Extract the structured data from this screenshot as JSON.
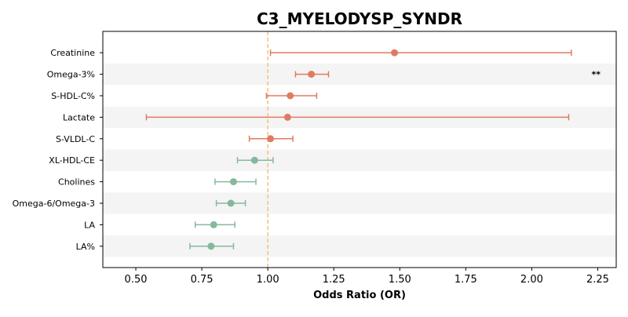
{
  "chart_data": {
    "type": "forest",
    "title": "C3_MYELODYSP_SYNDR",
    "xlabel": "Odds Ratio (OR)",
    "ylabel": "",
    "xlim": [
      0.375,
      2.32
    ],
    "xticks": [
      0.5,
      0.75,
      1.0,
      1.25,
      1.5,
      1.75,
      2.0,
      2.25
    ],
    "xtick_labels": [
      "0.50",
      "0.75",
      "1.00",
      "1.25",
      "1.50",
      "1.75",
      "2.00",
      "2.25"
    ],
    "reference_line": 1.0,
    "grid": false,
    "alternating_row_shading": true,
    "colors": {
      "positive": "#e07b62",
      "negative": "#86b89c",
      "reference_line": "#f5c27a",
      "row_shade": "#f4f4f4"
    },
    "rows": [
      {
        "label": "Creatinine",
        "or": 1.48,
        "ci_low": 1.01,
        "ci_high": 2.15,
        "direction": "positive",
        "annotation": ""
      },
      {
        "label": "Omega-3%",
        "or": 1.165,
        "ci_low": 1.105,
        "ci_high": 1.23,
        "direction": "positive",
        "annotation": "**"
      },
      {
        "label": "S-HDL-C%",
        "or": 1.085,
        "ci_low": 0.995,
        "ci_high": 1.185,
        "direction": "positive",
        "annotation": ""
      },
      {
        "label": "Lactate",
        "or": 1.075,
        "ci_low": 0.54,
        "ci_high": 2.14,
        "direction": "positive",
        "annotation": ""
      },
      {
        "label": "S-VLDL-C",
        "or": 1.01,
        "ci_low": 0.93,
        "ci_high": 1.095,
        "direction": "positive",
        "annotation": ""
      },
      {
        "label": "XL-HDL-CE",
        "or": 0.95,
        "ci_low": 0.885,
        "ci_high": 1.02,
        "direction": "negative",
        "annotation": ""
      },
      {
        "label": "Cholines",
        "or": 0.87,
        "ci_low": 0.8,
        "ci_high": 0.955,
        "direction": "negative",
        "annotation": ""
      },
      {
        "label": "Omega-6/Omega-3",
        "or": 0.86,
        "ci_low": 0.805,
        "ci_high": 0.915,
        "direction": "negative",
        "annotation": ""
      },
      {
        "label": "LA",
        "or": 0.795,
        "ci_low": 0.725,
        "ci_high": 0.875,
        "direction": "negative",
        "annotation": ""
      },
      {
        "label": "LA%",
        "or": 0.785,
        "ci_low": 0.705,
        "ci_high": 0.87,
        "direction": "negative",
        "annotation": ""
      }
    ]
  }
}
